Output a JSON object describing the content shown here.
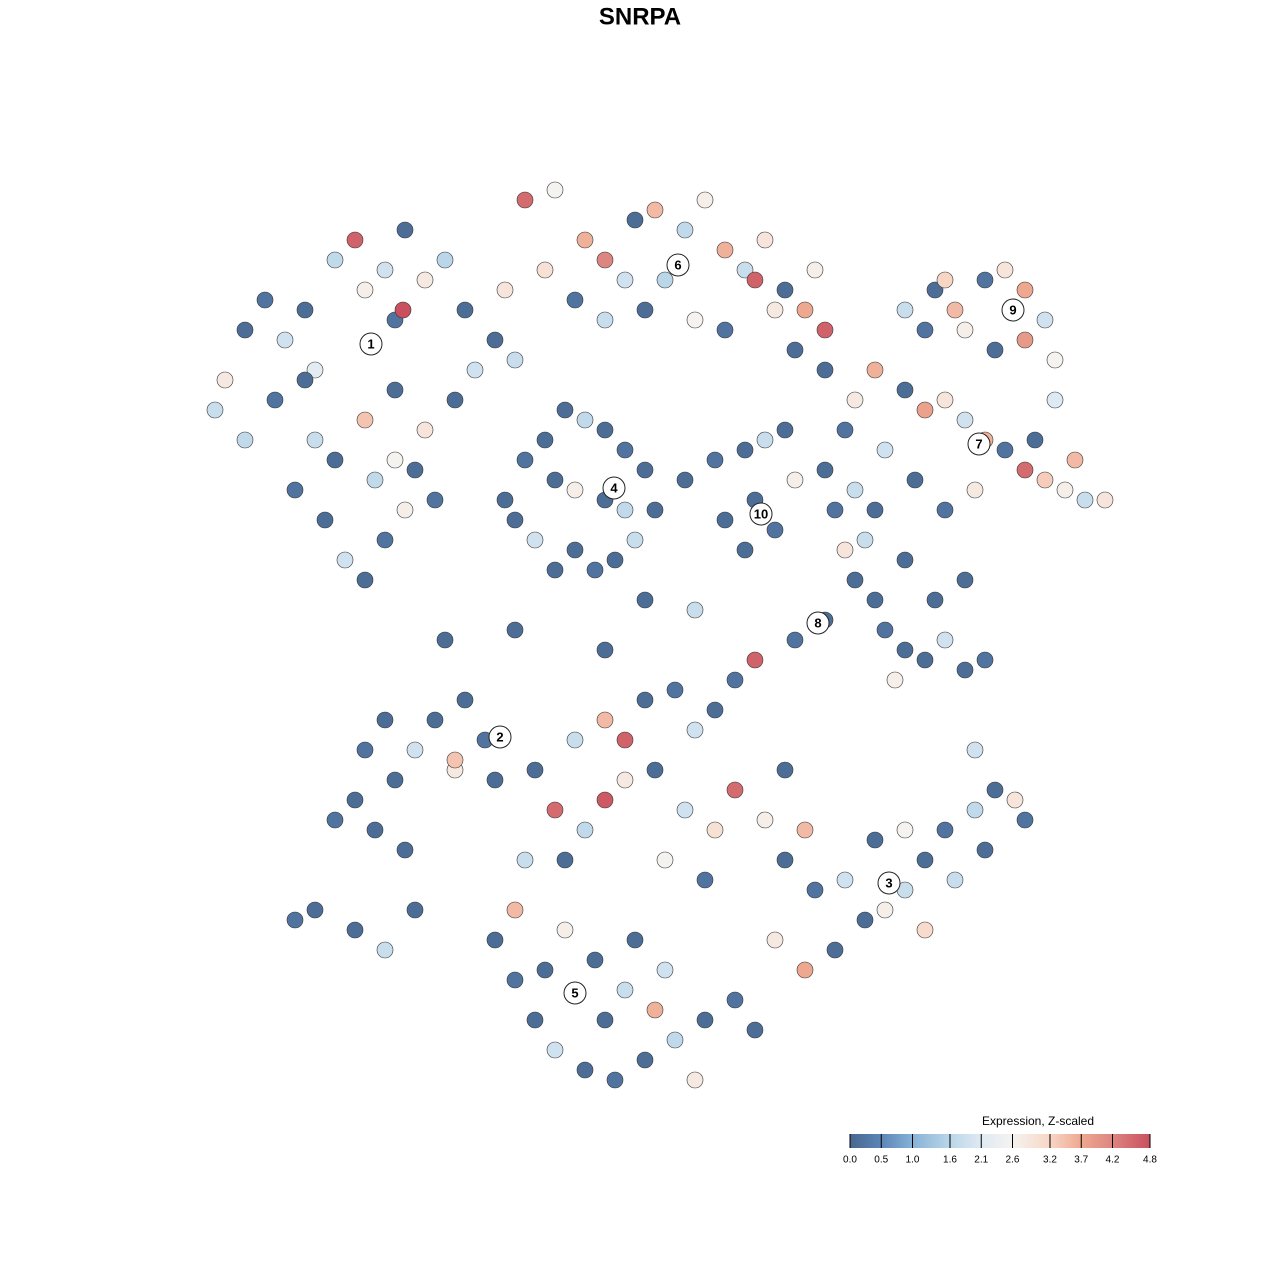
{
  "chart_data": {
    "type": "scatter",
    "title": "SNRPA",
    "legend_title": "Expression, Z-scaled",
    "xlim": [
      -48,
      48
    ],
    "ylim": [
      -48,
      48
    ],
    "colorbar_ticks": [
      {
        "value": 0,
        "label": "0.0"
      },
      0.5,
      {
        "value": 1,
        "label": "1.0"
      },
      1.6,
      2.1,
      2.6,
      3.2,
      3.7,
      4.2,
      4.8
    ],
    "colorscale": [
      "#48678e",
      "#5b86b8",
      "#87b2d6",
      "#bad6e9",
      "#deeaf3",
      "#f5f3f0",
      "#f8d6c6",
      "#eea88f",
      "#dd8580",
      "#c9505e"
    ],
    "cluster_labels": [
      {
        "label": "1",
        "x": -29.4,
        "y": 29.6
      },
      {
        "label": "2",
        "x": -16.5,
        "y": -9.7
      },
      {
        "label": "3",
        "x": 22.4,
        "y": -24.3
      },
      {
        "label": "4",
        "x": -5.1,
        "y": 15.2
      },
      {
        "label": "5",
        "x": -9,
        "y": -35.3
      },
      {
        "label": "6",
        "x": 1.3,
        "y": 37.5
      },
      {
        "label": "7",
        "x": 31.4,
        "y": 19.6
      },
      {
        "label": "8",
        "x": 15.3,
        "y": 1.7
      },
      {
        "label": "9",
        "x": 34.8,
        "y": 33
      },
      {
        "label": "10",
        "x": 9.6,
        "y": 12.6
      }
    ],
    "x": [
      -45,
      -44,
      -42,
      -40,
      -38,
      -36,
      -35,
      -33,
      -31,
      -30,
      -28,
      -27,
      -26,
      -24,
      -22,
      -20,
      -19,
      -21,
      -24,
      -27,
      -30,
      -33,
      -35,
      -37,
      -34,
      -32,
      -30,
      -28,
      -26,
      -29,
      -25,
      -23,
      -26.2,
      -27,
      -36,
      -39,
      -42,
      -17,
      -15,
      -16,
      -14,
      -11,
      -8,
      -6,
      -4,
      -3,
      -1,
      2,
      4,
      6,
      8,
      10,
      9,
      12,
      14,
      15,
      -9,
      -6,
      -2,
      3,
      6,
      16,
      -12,
      0,
      11,
      24,
      27,
      29,
      32,
      34,
      36,
      38,
      39,
      36,
      33,
      30,
      26,
      39,
      28,
      19,
      21,
      24,
      26,
      28,
      30,
      32,
      34,
      36,
      38,
      40,
      42,
      44,
      41,
      37,
      31,
      28,
      25,
      22,
      18,
      -16,
      -14,
      -12,
      -10,
      -8,
      -6,
      -4,
      -2,
      -1,
      -3,
      -5,
      -7,
      -9,
      -11,
      -13,
      -15,
      -9,
      -6,
      -11,
      -4,
      2,
      5,
      8,
      10,
      12,
      13,
      9,
      11,
      8,
      6,
      16,
      17,
      18,
      19,
      20,
      21,
      22,
      24,
      26,
      28,
      30,
      32,
      27,
      30,
      23,
      16,
      13,
      21,
      19,
      24,
      -31,
      -33,
      -29,
      -27,
      -25,
      -28,
      -30,
      -23,
      -20,
      -18,
      -17,
      -21,
      -26,
      -35,
      -37,
      -31,
      -28,
      -25,
      -21,
      -17,
      -15,
      -13,
      -11,
      -8,
      -5,
      -2,
      1,
      4,
      7,
      9,
      -1,
      -4,
      -7,
      -10,
      -12,
      -15,
      -3,
      0,
      -6,
      3,
      -14,
      -9,
      -6,
      -4,
      -2,
      1,
      3,
      5,
      7,
      9,
      -6,
      -11,
      -8,
      -4,
      -1,
      2,
      5,
      7,
      10,
      12,
      14,
      -10,
      0,
      4,
      -13,
      12,
      15,
      18,
      20,
      22,
      24,
      26,
      28,
      31,
      33,
      35,
      36,
      32,
      29,
      26,
      17,
      14,
      11,
      21,
      24,
      31,
      -22,
      -15,
      -2,
      3,
      -6,
      16,
      13
    ],
    "y": [
      23,
      26,
      31,
      34,
      30,
      33,
      27,
      38,
      40,
      35,
      37,
      32,
      41,
      36,
      38,
      33,
      27,
      24,
      21,
      25,
      22,
      18,
      20,
      15,
      12,
      8,
      6,
      10,
      13,
      16,
      17,
      14,
      33,
      18,
      26,
      24,
      20,
      30,
      28,
      35,
      44,
      45,
      40,
      38,
      36,
      42,
      43,
      41,
      44,
      39,
      37,
      40,
      36,
      35,
      33,
      37,
      34,
      32,
      33,
      32,
      31,
      31,
      37,
      36,
      33,
      33,
      35,
      33,
      36,
      37,
      35,
      32,
      28,
      30,
      29,
      31,
      31,
      24,
      36,
      24,
      27,
      25,
      23,
      24,
      22,
      20,
      19,
      17,
      16,
      15,
      14,
      14,
      18,
      20,
      15,
      13,
      16,
      19,
      21,
      14,
      18,
      20,
      23,
      22,
      21,
      19,
      17,
      13,
      10,
      8,
      7,
      9,
      7,
      10,
      12,
      15,
      14,
      16,
      13,
      16,
      18,
      19,
      20,
      21,
      16,
      14,
      11,
      9,
      12,
      17,
      13,
      9,
      6,
      10,
      4,
      1,
      -1,
      -2,
      0,
      -3,
      -2,
      4,
      6,
      -4,
      2,
      0,
      13,
      15,
      8,
      -16,
      -18,
      -19,
      -14,
      -11,
      -8,
      -11,
      -8,
      -6,
      -10,
      -14,
      -13,
      -21,
      -27,
      -28,
      -29,
      -31,
      -27,
      -12,
      -30,
      -34,
      -38,
      -41,
      -43,
      -44,
      -42,
      -40,
      -38,
      -36,
      -39,
      -37,
      -35,
      -32,
      -29,
      -33,
      -27,
      -30,
      -33,
      -38,
      -44,
      -22,
      -10,
      -8,
      -10,
      -6,
      -5,
      -9,
      -7,
      -4,
      -2,
      -16,
      -17,
      -19,
      -14,
      -13,
      -17,
      -19,
      -15,
      -18,
      -13,
      -19,
      -22,
      -22,
      -24,
      -13,
      -22,
      -25,
      -24,
      -28,
      -27,
      -25,
      -22,
      -19,
      -17,
      -15,
      -16,
      -18,
      -21,
      -24,
      -29,
      -31,
      -33,
      -30,
      -20,
      -19,
      -11,
      0,
      1,
      4,
      3,
      -1,
      27,
      29
    ],
    "values": [
      1.8,
      2.8,
      0.1,
      0.2,
      1.9,
      0.1,
      2.2,
      1.7,
      4.6,
      2.7,
      1.9,
      0.2,
      0.1,
      2.8,
      1.6,
      0.1,
      1.9,
      0.1,
      2.9,
      0.1,
      3.4,
      0.1,
      1.8,
      0.2,
      0.1,
      1.9,
      0.1,
      0.2,
      2.7,
      1.7,
      0.1,
      0.2,
      4.8,
      2.6,
      0.1,
      0.2,
      1.7,
      0.1,
      1.8,
      2.9,
      4.5,
      2.6,
      3.6,
      4.2,
      1.9,
      0.1,
      3.5,
      1.7,
      2.7,
      3.6,
      1.8,
      2.9,
      4.6,
      0.1,
      3.7,
      2.7,
      0.2,
      1.8,
      0.1,
      2.6,
      0.2,
      4.6,
      3.0,
      1.6,
      2.8,
      1.8,
      0.1,
      3.5,
      0.2,
      2.9,
      3.7,
      1.9,
      2.6,
      3.9,
      0.1,
      2.7,
      0.2,
      2.1,
      3.2,
      2.8,
      3.6,
      0.1,
      3.8,
      2.9,
      1.9,
      3.6,
      0.2,
      4.5,
      3.3,
      2.7,
      1.8,
      2.9,
      3.5,
      0.1,
      2.8,
      0.2,
      0.1,
      1.9,
      0.2,
      0.1,
      0.2,
      0.1,
      0.1,
      1.7,
      0.1,
      0.2,
      0.1,
      0.1,
      1.8,
      0.1,
      0.2,
      0.1,
      0.1,
      1.9,
      0.1,
      2.7,
      0.1,
      0.1,
      1.7,
      0.1,
      0.2,
      0.1,
      1.8,
      0.1,
      2.7,
      0.1,
      0.2,
      0.1,
      0.1,
      0.1,
      0.2,
      2.9,
      0.1,
      1.8,
      0.1,
      0.2,
      0.1,
      0.1,
      1.9,
      0.1,
      0.2,
      0.1,
      0.1,
      2.7,
      0.1,
      0.2,
      0.1,
      1.8,
      0.1,
      0.1,
      0.2,
      0.1,
      0.1,
      1.9,
      0.1,
      0.2,
      0.1,
      0.1,
      0.2,
      0.1,
      2.8,
      0.1,
      0.1,
      0.2,
      0.1,
      1.8,
      0.1,
      3.4,
      0.1,
      0.2,
      0.1,
      1.9,
      0.1,
      0.2,
      0.1,
      1.7,
      0.1,
      0.2,
      0.1,
      3.6,
      1.8,
      0.1,
      2.7,
      0.1,
      3.5,
      0.1,
      1.9,
      0.1,
      2.8,
      1.8,
      1.8,
      3.5,
      4.6,
      0.1,
      0.2,
      1.9,
      0.1,
      0.2,
      4.6,
      4.7,
      4.5,
      1.7,
      2.8,
      0.1,
      1.9,
      3.0,
      4.5,
      2.7,
      0.1,
      3.5,
      0.1,
      2.6,
      0.2,
      0.1,
      0.1,
      0.2,
      1.9,
      0.1,
      2.7,
      1.8,
      0.1,
      0.2,
      1.7,
      0.1,
      2.9,
      0.2,
      0.1,
      1.8,
      3.1,
      0.1,
      3.7,
      2.8,
      0.1,
      2.6,
      1.9,
      0.1,
      0.1,
      0.1,
      1.8,
      0.1,
      0.1,
      0.1
    ]
  }
}
